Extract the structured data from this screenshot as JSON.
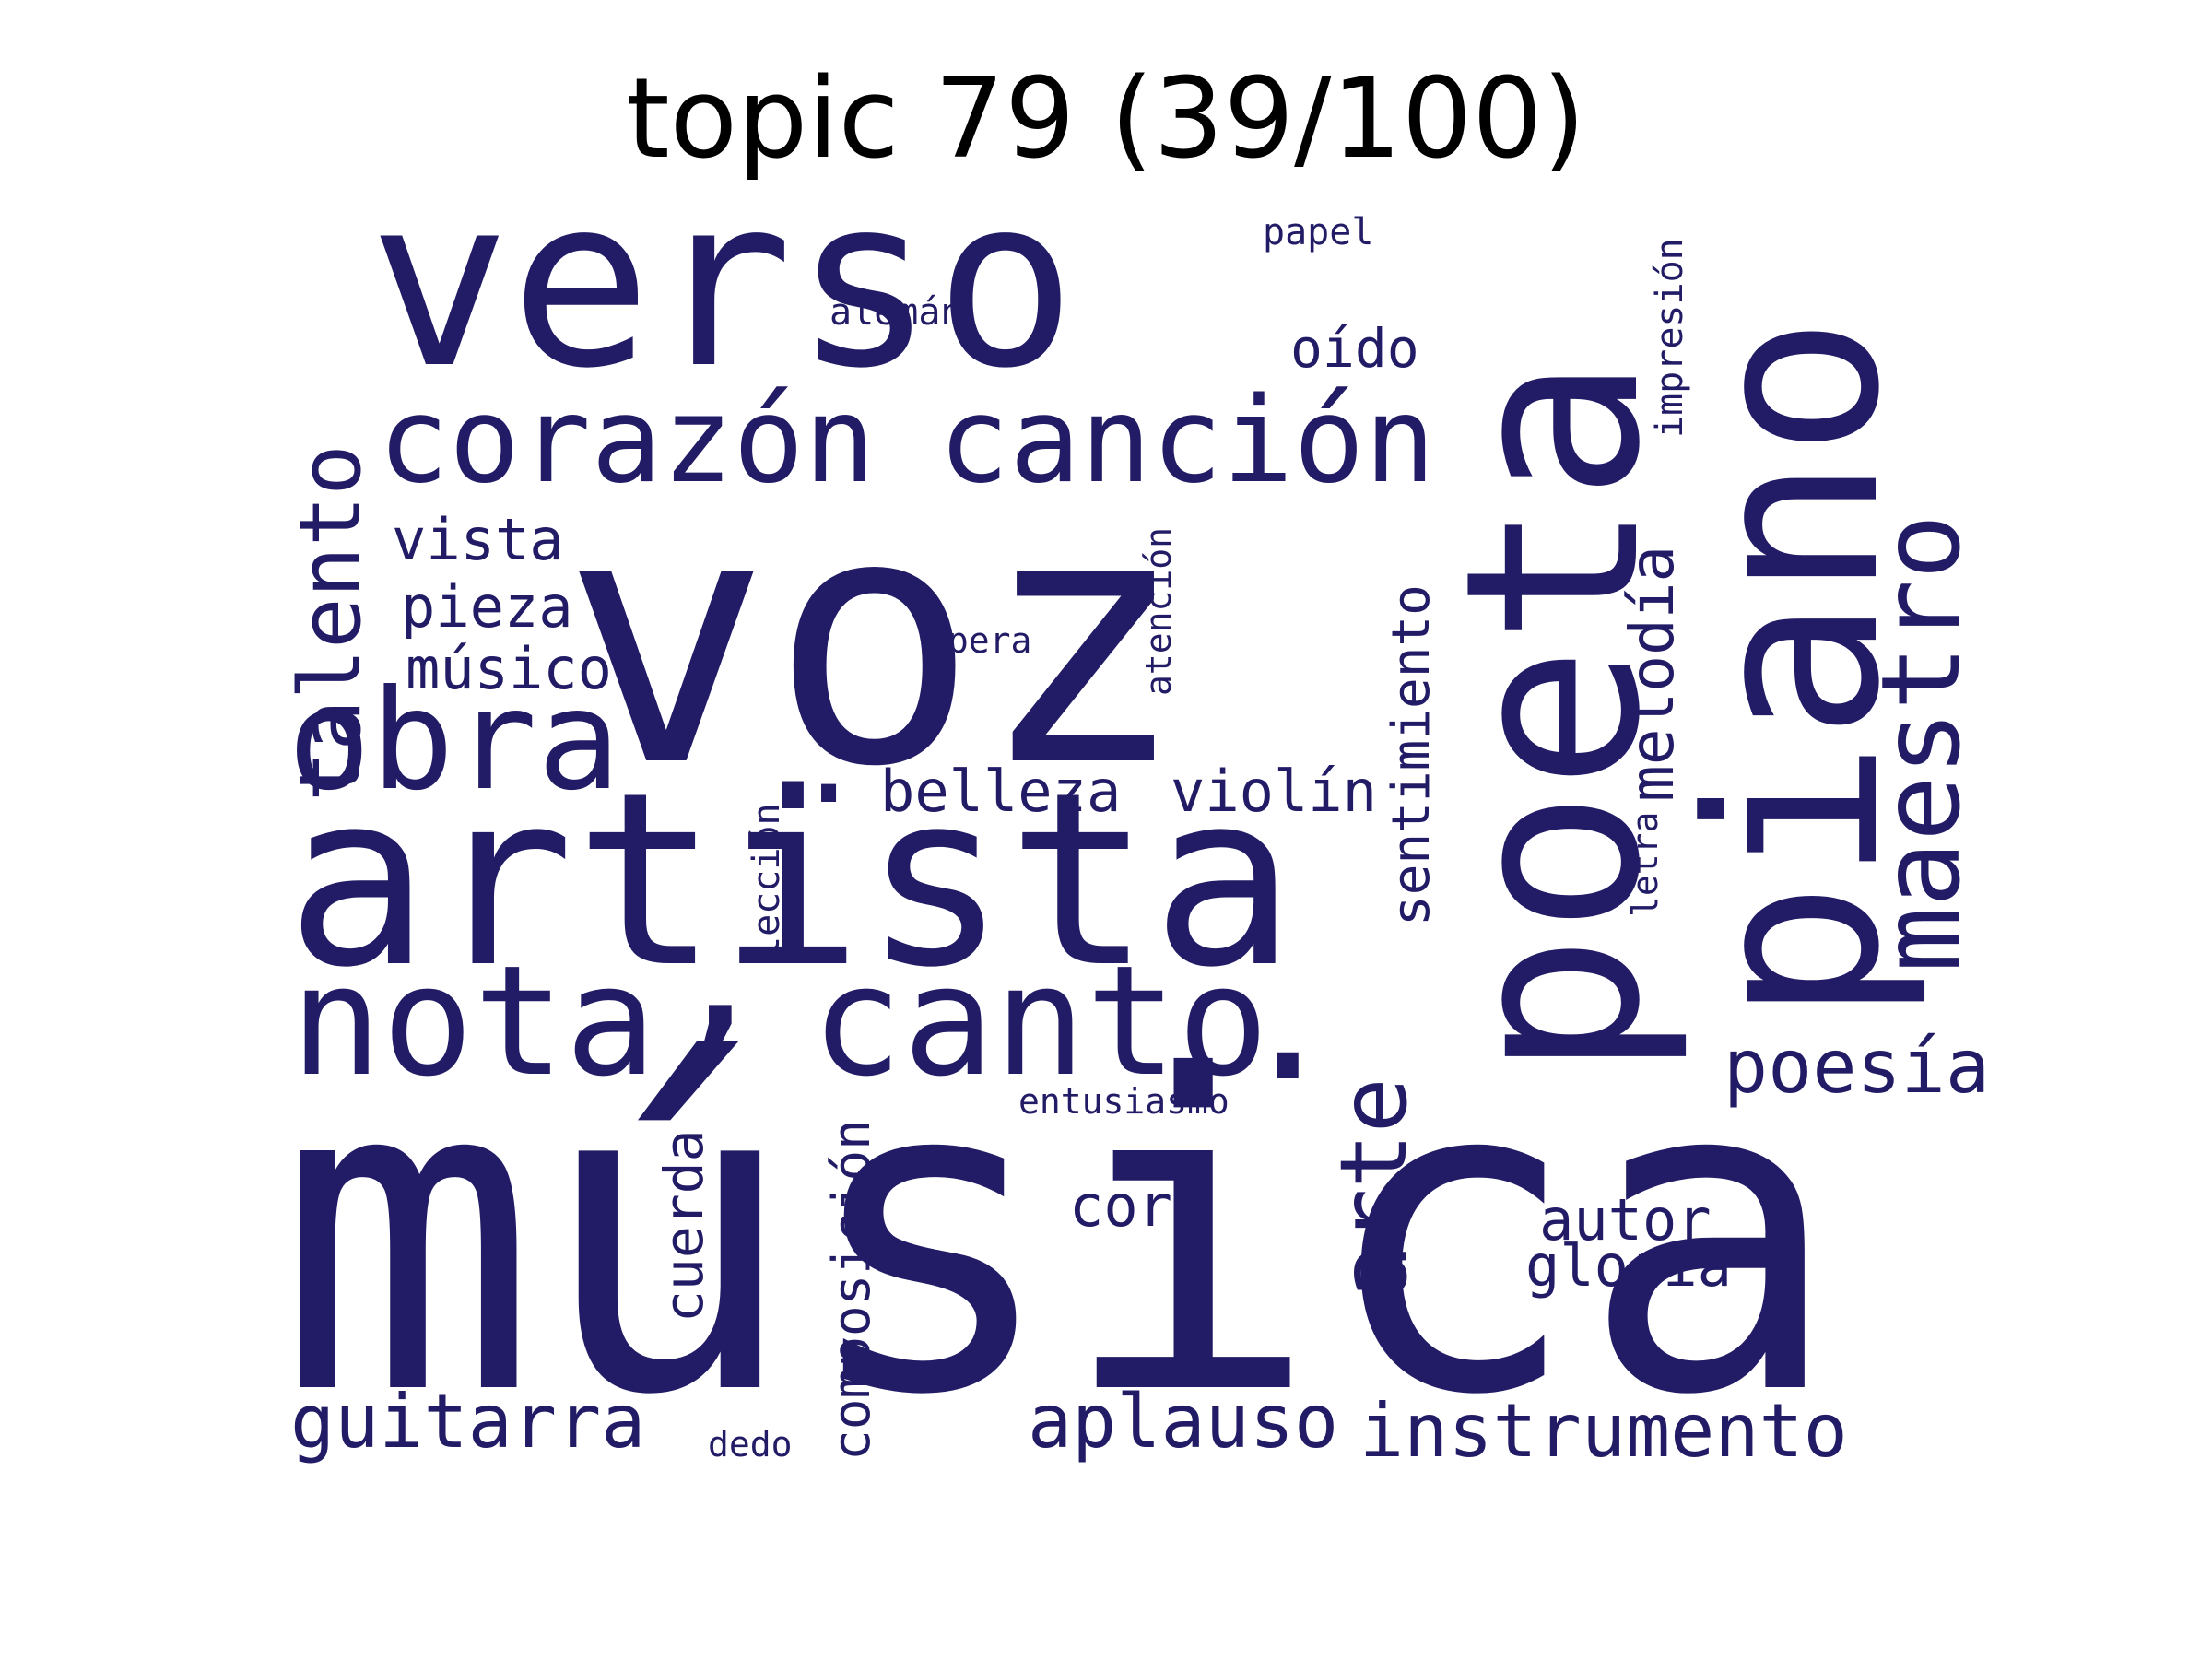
{
  "title": "topic 79 (39/100)",
  "word_color": "#221c66",
  "words": [
    "música",
    "voz",
    "artista",
    "verso",
    "poeta",
    "piano",
    "canto",
    "nota",
    "corazón",
    "canción",
    "maestro",
    "obra",
    "talento",
    "arte",
    "melodía",
    "poesía",
    "sentimiento",
    "instrumento",
    "aplauso",
    "guitarra",
    "belleza",
    "violín",
    "cuerda",
    "composición",
    "pieza",
    "músico",
    "vista",
    "coro",
    "autor",
    "gloria",
    "oído",
    "atención",
    "impresión",
    "lección",
    "letra",
    "ópera",
    "entusiasmo",
    "papel",
    "alemán",
    "dedo",
    ",",
    ".",
    "."
  ]
}
